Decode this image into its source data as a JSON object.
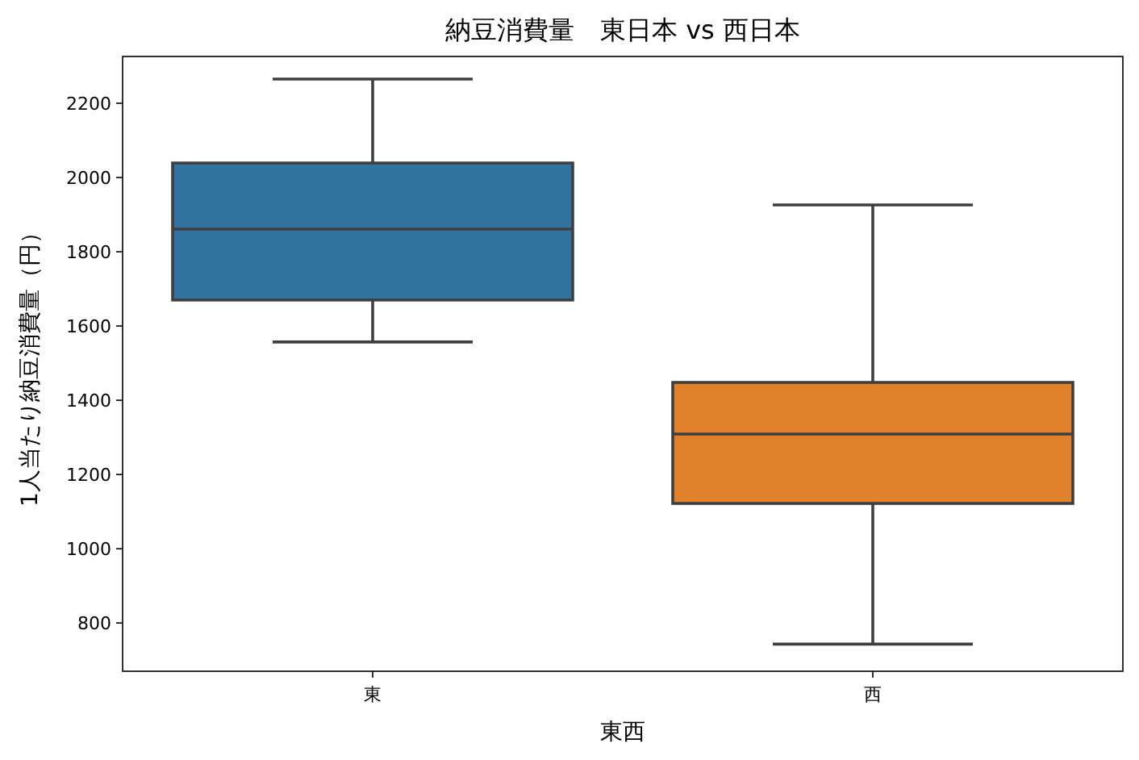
{
  "chart_data": {
    "type": "box",
    "title": "納豆消費量　東日本 vs 西日本",
    "xlabel": "東西",
    "ylabel": "1人当たり納豆消費量（円）",
    "categories": [
      "東",
      "西"
    ],
    "colors": [
      "#3274a1",
      "#e1812c"
    ],
    "boxes": [
      {
        "low": 1557,
        "q1": 1670,
        "median": 1861,
        "q3": 2039,
        "high": 2265
      },
      {
        "low": 743,
        "q1": 1122,
        "median": 1309,
        "q3": 1448,
        "high": 1926
      }
    ],
    "ylim": [
      670,
      2326
    ],
    "yticks": [
      800,
      1000,
      1200,
      1400,
      1600,
      1800,
      2000,
      2200
    ]
  }
}
